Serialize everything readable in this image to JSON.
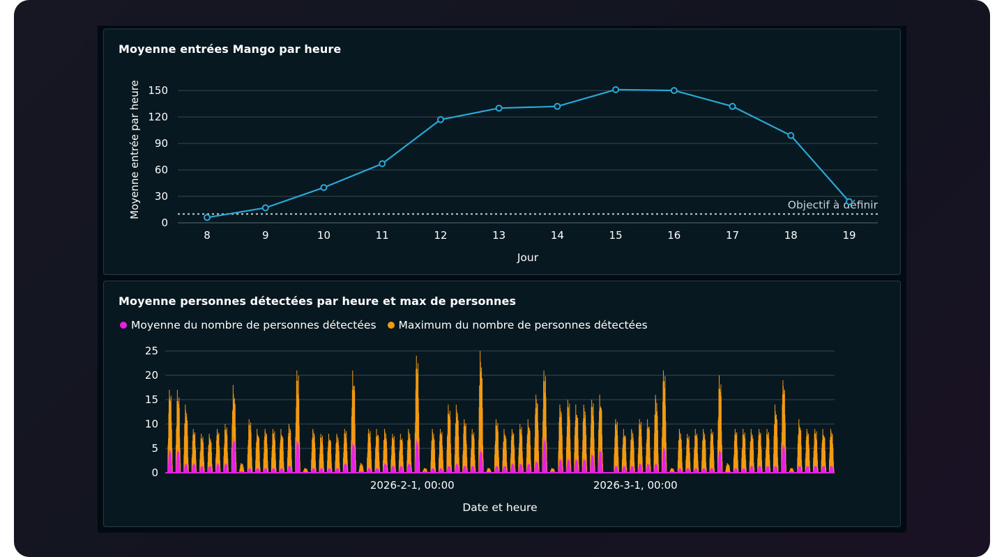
{
  "colors": {
    "line": "#29a9d6",
    "mean": "#e620e6",
    "max": "#f39a12",
    "grid": "#3a4a54",
    "text": "#ffffff",
    "target": "#c9d2d8"
  },
  "chart_data": [
    {
      "type": "line",
      "title": "Moyenne entrées Mango par heure",
      "xlabel": "Jour",
      "ylabel": "Moyenne entrée par heure",
      "x": [
        8,
        9,
        10,
        11,
        12,
        13,
        14,
        15,
        16,
        17,
        18,
        19
      ],
      "series": [
        {
          "values": [
            6,
            17,
            40,
            67,
            117,
            130,
            132,
            151,
            150,
            132,
            99,
            24
          ]
        }
      ],
      "ylim": [
        0,
        150
      ],
      "yticks": [
        0,
        30,
        60,
        90,
        120,
        150
      ],
      "annotations": [
        {
          "type": "hline",
          "y": 10,
          "label": "Objectif à définir",
          "style": "dotted"
        }
      ],
      "grid": true
    },
    {
      "type": "bar",
      "title": "Moyenne personnes détectées par heure et max de personnes",
      "xlabel": "Date et heure",
      "ylabel": "",
      "x_tick_labels": [
        "2026-2-1, 00:00",
        "2026-3-1, 00:00"
      ],
      "ylim": [
        0,
        25
      ],
      "yticks": [
        0,
        5,
        10,
        15,
        20,
        25
      ],
      "legend_position": "top-left",
      "grid": true,
      "days": 84,
      "day_max_peaks": [
        17,
        17,
        14,
        9,
        8,
        8,
        9,
        10,
        18,
        2,
        11,
        9,
        9,
        9,
        9,
        10,
        21,
        1,
        9,
        8,
        8,
        8,
        9,
        21,
        2,
        9,
        9,
        9,
        8,
        8,
        9,
        24,
        1,
        9,
        9,
        14,
        14,
        11,
        9,
        25,
        1,
        11,
        9,
        9,
        10,
        11,
        16,
        21,
        1,
        14,
        15,
        14,
        14,
        15,
        16,
        0,
        11,
        9,
        9,
        11,
        11,
        16,
        21,
        1,
        9,
        8,
        9,
        9,
        9,
        20,
        2,
        9,
        9,
        9,
        9,
        9,
        14,
        19,
        1,
        11,
        9,
        9,
        9,
        9
      ],
      "day_mean_peaks": [
        5,
        5,
        2,
        2,
        1.5,
        1.5,
        2,
        2,
        7.5,
        0.3,
        1,
        1,
        1,
        1,
        1,
        1.5,
        7,
        0.2,
        1,
        1,
        1,
        1,
        2,
        6.5,
        0.3,
        1,
        1,
        2,
        1.5,
        1.5,
        2,
        7,
        0.3,
        1,
        1,
        1.5,
        2,
        1.5,
        1.5,
        5,
        0.2,
        1.5,
        1.5,
        2,
        2,
        2,
        2.5,
        7.5,
        0.3,
        3,
        3,
        3,
        3,
        4,
        5,
        0,
        1.5,
        1.5,
        1.5,
        2,
        2,
        2,
        5.5,
        0.3,
        1,
        1,
        1,
        1,
        1,
        5,
        0.2,
        1,
        1,
        1.5,
        1.5,
        1.5,
        1.5,
        6,
        0.3,
        1.5,
        1.5,
        1.5,
        1.5,
        1.5
      ],
      "series": [
        {
          "name": "Moyenne du nombre de personnes détectées",
          "color": "#e620e6"
        },
        {
          "name": "Maximum du nombre de personnes détectées",
          "color": "#f39a12"
        }
      ]
    }
  ]
}
